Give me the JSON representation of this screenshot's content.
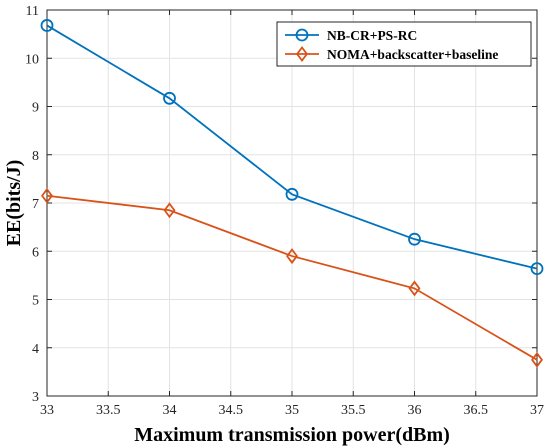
{
  "chart_data": {
    "type": "line",
    "title": "",
    "xlabel": "Maximum transmission power(dBm)",
    "ylabel": "EE(bits/J)",
    "xlim": [
      33,
      37
    ],
    "ylim": [
      3,
      11
    ],
    "x_ticks": [
      "33",
      "33.5",
      "34",
      "34.5",
      "35",
      "35.5",
      "36",
      "36.5",
      "37"
    ],
    "y_ticks": [
      "3",
      "4",
      "5",
      "6",
      "7",
      "8",
      "9",
      "10",
      "11"
    ],
    "grid": true,
    "legend_position": "top-right",
    "x": [
      33,
      34,
      35,
      36,
      37
    ],
    "series": [
      {
        "name": "NB-CR+PS-RC",
        "values": [
          10.68,
          9.17,
          7.18,
          6.25,
          5.64
        ],
        "color": "#0072BD",
        "marker": "circle"
      },
      {
        "name": "NOMA+backscatter+baseline",
        "values": [
          7.15,
          6.85,
          5.9,
          5.23,
          3.75
        ],
        "color": "#D95319",
        "marker": "diamond"
      }
    ]
  }
}
